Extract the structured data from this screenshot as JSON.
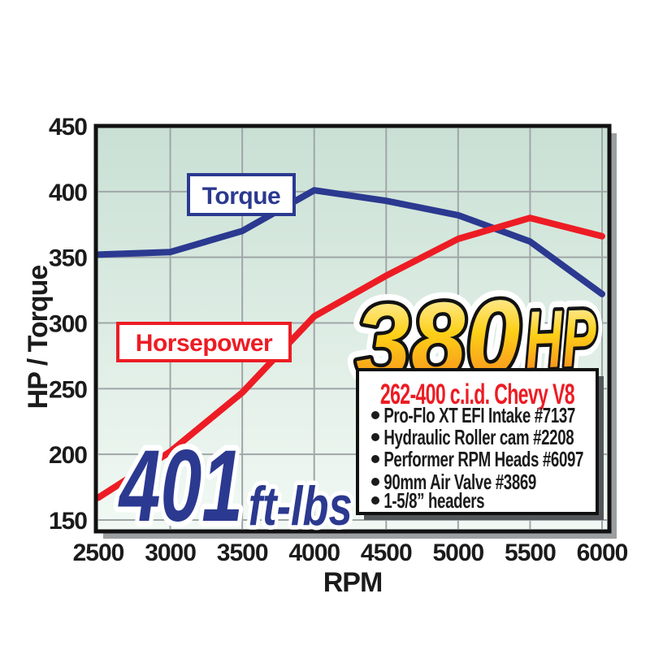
{
  "page": {
    "background": "#ffffff"
  },
  "chart_data": {
    "type": "line",
    "title": "",
    "xlabel": "RPM",
    "ylabel": "HP / Torque",
    "x": [
      2500,
      3000,
      3500,
      4000,
      4500,
      5000,
      5500,
      6000
    ],
    "x_ticks": [
      "2500",
      "3000",
      "3500",
      "4000",
      "4500",
      "5000",
      "5500",
      "6000"
    ],
    "y_ticks": [
      "450",
      "400",
      "350",
      "300",
      "250",
      "200",
      "150"
    ],
    "y_tick_values": [
      450,
      400,
      350,
      300,
      250,
      200,
      150
    ],
    "xlim": [
      2500,
      6000
    ],
    "ylim": [
      150,
      450
    ],
    "grid": true,
    "legend_position": "inline-boxes",
    "series": [
      {
        "name": "Torque",
        "color": "#2b3990",
        "values": [
          352,
          354,
          370,
          401,
          393,
          382,
          362,
          322
        ]
      },
      {
        "name": "Horsepower",
        "color": "#ed1c24",
        "values": [
          167,
          202,
          247,
          305,
          336,
          364,
          380,
          366
        ]
      }
    ],
    "annotations": {
      "peak_hp": {
        "number": "380",
        "unit": "HP"
      },
      "peak_torque": {
        "number": "401",
        "unit": "ft-lbs"
      }
    }
  },
  "spec_box": {
    "title": "262-400 c.i.d. Chevy V8",
    "items": [
      "Pro-Flo XT EFI Intake #7137",
      "Hydraulic Roller cam #2208",
      "Performer RPM Heads #6097",
      "90mm Air Valve #3869",
      "1-5/8” headers"
    ]
  },
  "colors": {
    "torque_blue": "#2b3990",
    "horsepower_red": "#ed1c24",
    "plot_bg_top": "#c9e0d4",
    "plot_bg_bottom": "#f2f9f4",
    "gridline": "#a0a6a8",
    "plot_shadow": "#9b9fa1",
    "spec_shadow": "#54575a",
    "gold_top": "#fff7cf",
    "gold_mid": "#fdd017",
    "gold_bottom": "#f1731f"
  }
}
